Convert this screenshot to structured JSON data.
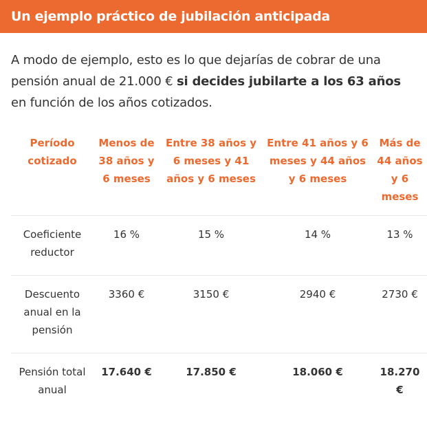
{
  "header": {
    "title": "Un ejemplo práctico de jubilación anticipada",
    "background_color": "#EC6A2F"
  },
  "intro": {
    "part1": "A modo de ejemplo, esto es lo que dejarías de cobrar de una pensión anual de 21.000 € ",
    "bold": "si decides jubilarte a los 63 años",
    "part2": " en función de los años cotizados."
  },
  "table": {
    "headers": [
      "Período cotizado",
      "Menos de 38 años y 6 meses",
      "Entre 38 años y 6 meses y 41 años y 6 meses",
      "Entre 41 años y 6 meses y 44 años y 6 meses",
      "Más de 44 años y 6 meses"
    ],
    "rows": [
      {
        "label": "Coeficiente reductor",
        "values": [
          "16 %",
          "15 %",
          "14 %",
          "13 %"
        ]
      },
      {
        "label": "Descuento anual en la pensión",
        "values": [
          "3360 €",
          "3150 €",
          "2940 €",
          "2730 €"
        ]
      },
      {
        "label": "Pensión total anual",
        "values": [
          "17.640 €",
          "17.850 €",
          "18.060 €",
          "18.270 €"
        ]
      }
    ]
  }
}
